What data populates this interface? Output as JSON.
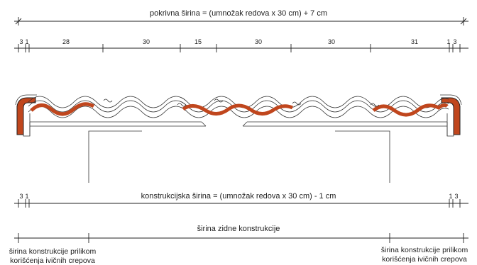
{
  "top_dimension": {
    "title": "pokrivna širina = (umnožak redova x 30 cm) + 7 cm",
    "segments": [
      "3",
      "1",
      "28",
      "30",
      "15",
      "30",
      "30",
      "31",
      "1",
      "3"
    ]
  },
  "bottom_dimension": {
    "title": "konstrukcijska širina = (umnožak redova x 30 cm) - 1 cm",
    "left_segments": [
      "3",
      "1"
    ],
    "right_segments": [
      "1",
      "3"
    ]
  },
  "wall_dimension": {
    "title": "širina zidne konstrukcije"
  },
  "notes": {
    "left": [
      "širina konstrukcije prilikom",
      "korišćenja ivičnih crepova"
    ],
    "right": [
      "širina konstrukcije prilikom",
      "korišćenja ivičnih crepova"
    ]
  },
  "colors": {
    "tile_accent": "#c0461d",
    "line": "#222222"
  }
}
